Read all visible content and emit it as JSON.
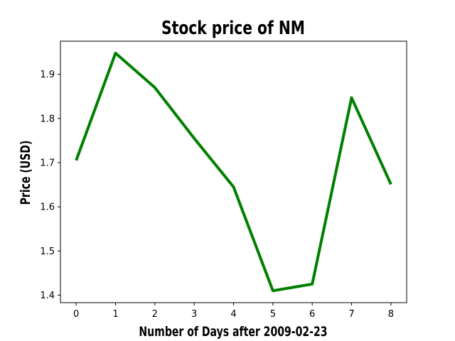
{
  "chart_data": {
    "type": "line",
    "title": "Stock price of NM",
    "xlabel": "Number of Days after 2009-02-23",
    "ylabel": "Price (USD)",
    "x": [
      0,
      1,
      2,
      3,
      4,
      5,
      6,
      7,
      8
    ],
    "series": [
      {
        "values": [
          1.705,
          1.948,
          1.87,
          1.755,
          1.645,
          1.41,
          1.425,
          1.847,
          1.651
        ],
        "color": "#008000"
      }
    ],
    "xlim": [
      -0.4,
      8.4
    ],
    "ylim": [
      1.383,
      1.975
    ],
    "xticks": [
      0,
      1,
      2,
      3,
      4,
      5,
      6,
      7,
      8
    ],
    "xtick_labels": [
      "0",
      "1",
      "2",
      "3",
      "4",
      "5",
      "6",
      "7",
      "8"
    ],
    "yticks": [
      1.4,
      1.5,
      1.6,
      1.7,
      1.8,
      1.9
    ],
    "ytick_labels": [
      "1.4",
      "1.5",
      "1.6",
      "1.7",
      "1.8",
      "1.9"
    ],
    "grid": false,
    "legend": "none"
  }
}
